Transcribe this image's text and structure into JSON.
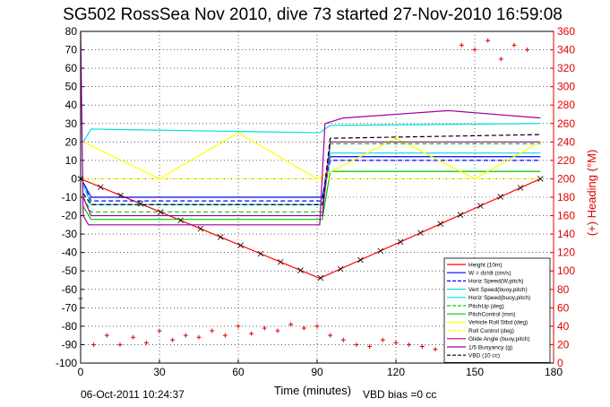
{
  "chart_data": {
    "type": "line",
    "title": "SG502 RossSea Nov 2010, dive 73 started 27-Nov-2010 16:59:08",
    "xlabel": "Time (minutes)",
    "ylabel_right": "(+) Heading (°M)",
    "xlim": [
      0,
      180
    ],
    "ylim": [
      -100,
      80
    ],
    "y2lim": [
      0,
      360
    ],
    "xticks": [
      "0",
      "30",
      "60",
      "90",
      "120",
      "150",
      "180"
    ],
    "yticks": [
      "-100",
      "-90",
      "-80",
      "-70",
      "-60",
      "-50",
      "-40",
      "-30",
      "-20",
      "-10",
      "0",
      "10",
      "20",
      "30",
      "40",
      "50",
      "60",
      "70",
      "80"
    ],
    "y2ticks": [
      "0",
      "20",
      "40",
      "60",
      "80",
      "100",
      "120",
      "140",
      "160",
      "180",
      "200",
      "220",
      "240",
      "260",
      "280",
      "300",
      "320",
      "340",
      "360"
    ],
    "grid": true,
    "legend_position": "lower-right",
    "footer_left": "06-Oct-2011 10:24:37",
    "footer_right": "VBD bias =0 cc",
    "series": [
      {
        "name": "Height (10m)",
        "color": "#ff0000",
        "x": [
          0,
          91,
          175
        ],
        "y": [
          0,
          -54,
          0
        ]
      },
      {
        "name": "W = dz/dt (cm/s)",
        "color": "#0000ff",
        "x": [
          1,
          4,
          92,
          95,
          175
        ],
        "y": [
          -2,
          -10,
          -10,
          12,
          12
        ]
      },
      {
        "name": "Horiz Speed(W,pitch)",
        "color": "#0000ff",
        "x": [
          1,
          4,
          92,
          95,
          175
        ],
        "y": [
          -3,
          -12,
          -12,
          10,
          10
        ]
      },
      {
        "name": "Vert Speed(buoy,pitch)",
        "color": "#00e0e0",
        "x": [
          1,
          4,
          92,
          95,
          175
        ],
        "y": [
          -3,
          -14,
          -14,
          14,
          14
        ]
      },
      {
        "name": "Horiz Speed(buoy,pitch)",
        "color": "#00e0e0",
        "x": [
          1,
          4,
          91,
          95,
          175
        ],
        "y": [
          20,
          27,
          25,
          29,
          30
        ]
      },
      {
        "name": "PitchUp (deg)",
        "color": "#00cc00",
        "x": [
          1,
          4,
          92,
          95,
          175
        ],
        "y": [
          -10,
          -18,
          -18,
          19,
          19
        ]
      },
      {
        "name": "PitchControl (mm)",
        "color": "#00cc00",
        "x": [
          1,
          4,
          92,
          95,
          175
        ],
        "y": [
          -15,
          -22,
          -22,
          4,
          4
        ]
      },
      {
        "name": "Vehicle Roll Stbd (deg)",
        "color": "#ffff00",
        "x": [
          1,
          30,
          60,
          90,
          120,
          150,
          175
        ],
        "y": [
          20,
          0,
          25,
          0,
          22,
          0,
          20
        ]
      },
      {
        "name": "Roll Control (deg)",
        "color": "#ffff00",
        "x": [
          1,
          4,
          92,
          95,
          175
        ],
        "y": [
          0,
          0,
          0,
          0,
          0
        ]
      },
      {
        "name": "Glide Angle (buoy,pitch)",
        "color": "#a000a0",
        "x": [
          1,
          4,
          92,
          95,
          175
        ],
        "y": [
          -10,
          -20,
          -20,
          20,
          20
        ]
      },
      {
        "name": "1/5 Buoyancy (g)",
        "color": "#a000a0",
        "x": [
          0,
          1,
          3,
          91,
          93,
          100,
          140,
          175
        ],
        "y": [
          80,
          -20,
          -25,
          -25,
          30,
          33,
          37,
          33
        ]
      },
      {
        "name": "VBD (10 cc)",
        "color": "#000000",
        "x": [
          1,
          4,
          92,
          95,
          175
        ],
        "y": [
          -8,
          -14,
          -14,
          22,
          24
        ]
      }
    ],
    "heading_deg": {
      "color": "#e00000",
      "x": [
        0,
        5,
        10,
        15,
        20,
        25,
        30,
        35,
        40,
        45,
        50,
        55,
        60,
        65,
        70,
        75,
        80,
        85,
        90,
        95,
        100,
        105,
        110,
        115,
        120,
        125,
        130,
        135,
        140,
        145,
        150,
        155,
        160,
        165,
        170
      ],
      "y": [
        70,
        20,
        30,
        20,
        28,
        22,
        35,
        25,
        30,
        28,
        35,
        30,
        40,
        32,
        38,
        35,
        42,
        38,
        40,
        30,
        25,
        20,
        18,
        25,
        22,
        20,
        18,
        15,
        20,
        345,
        340,
        350,
        330,
        345,
        340
      ]
    }
  }
}
